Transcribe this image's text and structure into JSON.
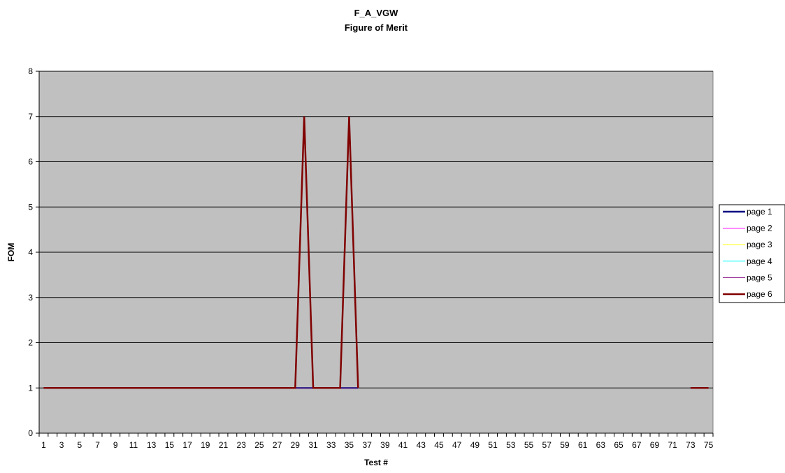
{
  "chart_data": {
    "type": "line",
    "title": "F_A_VGW",
    "subtitle": "Figure of Merit",
    "xlabel": "Test #",
    "ylabel": "FOM",
    "ylim": [
      0,
      8
    ],
    "yticks": [
      0,
      1,
      2,
      3,
      4,
      5,
      6,
      7,
      8
    ],
    "x": [
      1,
      2,
      3,
      4,
      5,
      6,
      7,
      8,
      9,
      10,
      11,
      12,
      13,
      14,
      15,
      16,
      17,
      18,
      19,
      20,
      21,
      22,
      23,
      24,
      25,
      26,
      27,
      28,
      29,
      30,
      31,
      32,
      33,
      34,
      35,
      36,
      37,
      38,
      39,
      40,
      41,
      42,
      43,
      44,
      45,
      46,
      47,
      48,
      49,
      50,
      51,
      52,
      53,
      54,
      55,
      56,
      57,
      58,
      59,
      60,
      61,
      62,
      63,
      64,
      65,
      66,
      67,
      68,
      69,
      70,
      71,
      72,
      73,
      74,
      75
    ],
    "xtick_labels": [
      "1",
      "3",
      "5",
      "7",
      "9",
      "11",
      "13",
      "15",
      "17",
      "19",
      "21",
      "23",
      "25",
      "27",
      "29",
      "31",
      "33",
      "35",
      "37",
      "39",
      "41",
      "43",
      "45",
      "47",
      "49",
      "51",
      "53",
      "55",
      "57",
      "59",
      "61",
      "63",
      "65",
      "67",
      "69",
      "71",
      "73",
      "75"
    ],
    "grid": "horizontal",
    "plot_background": "#c0c0c0",
    "legend_position": "right",
    "series": [
      {
        "name": "page 1",
        "color": "#000080",
        "width": 2.5,
        "values": [
          1,
          1,
          1,
          1,
          1,
          1,
          1,
          1,
          1,
          1,
          1,
          1,
          1,
          1,
          1,
          1,
          1,
          1,
          1,
          1,
          1,
          1,
          1,
          1,
          1,
          1,
          1,
          1,
          1,
          1,
          1,
          1,
          1,
          1,
          1,
          1,
          null,
          null,
          null,
          null,
          null,
          null,
          null,
          null,
          null,
          null,
          null,
          null,
          null,
          null,
          null,
          null,
          null,
          null,
          null,
          null,
          null,
          null,
          null,
          null,
          null,
          null,
          null,
          null,
          null,
          null,
          null,
          null,
          null,
          null,
          null,
          null,
          1,
          1,
          1
        ]
      },
      {
        "name": "page 2",
        "color": "#ff00ff",
        "width": 1,
        "values": [
          1,
          1,
          1,
          1,
          1,
          1,
          1,
          1,
          1,
          1,
          1,
          1,
          1,
          1,
          1,
          1,
          1,
          1,
          1,
          1,
          1,
          1,
          1,
          1,
          1,
          1,
          1,
          1,
          1,
          1,
          1,
          1,
          1,
          1,
          1,
          1,
          null,
          null,
          null,
          null,
          null,
          null,
          null,
          null,
          null,
          null,
          null,
          null,
          null,
          null,
          null,
          null,
          null,
          null,
          null,
          null,
          null,
          null,
          null,
          null,
          null,
          null,
          null,
          null,
          null,
          null,
          null,
          null,
          null,
          null,
          null,
          null,
          1,
          1,
          1
        ]
      },
      {
        "name": "page 3",
        "color": "#ffff00",
        "width": 1,
        "values": [
          1,
          1,
          1,
          1,
          1,
          1,
          1,
          1,
          1,
          1,
          1,
          1,
          1,
          1,
          1,
          1,
          1,
          1,
          1,
          1,
          1,
          1,
          1,
          1,
          1,
          1,
          1,
          1,
          1,
          1,
          1,
          1,
          1,
          1,
          1,
          1,
          null,
          null,
          null,
          null,
          null,
          null,
          null,
          null,
          null,
          null,
          null,
          null,
          null,
          null,
          null,
          null,
          null,
          null,
          null,
          null,
          null,
          null,
          null,
          null,
          null,
          null,
          null,
          null,
          null,
          null,
          null,
          null,
          null,
          null,
          null,
          null,
          1,
          1,
          1
        ]
      },
      {
        "name": "page 4",
        "color": "#00ffff",
        "width": 1,
        "values": [
          1,
          1,
          1,
          1,
          1,
          1,
          1,
          1,
          1,
          1,
          1,
          1,
          1,
          1,
          1,
          1,
          1,
          1,
          1,
          1,
          1,
          1,
          1,
          1,
          1,
          1,
          1,
          1,
          1,
          1,
          1,
          1,
          1,
          1,
          1,
          1,
          null,
          null,
          null,
          null,
          null,
          null,
          null,
          null,
          null,
          null,
          null,
          null,
          null,
          null,
          null,
          null,
          null,
          null,
          null,
          null,
          null,
          null,
          null,
          null,
          null,
          null,
          null,
          null,
          null,
          null,
          null,
          null,
          null,
          null,
          null,
          null,
          1,
          1,
          1
        ]
      },
      {
        "name": "page 5",
        "color": "#800080",
        "width": 1,
        "values": [
          1,
          1,
          1,
          1,
          1,
          1,
          1,
          1,
          1,
          1,
          1,
          1,
          1,
          1,
          1,
          1,
          1,
          1,
          1,
          1,
          1,
          1,
          1,
          1,
          1,
          1,
          1,
          1,
          1,
          1,
          1,
          1,
          1,
          1,
          1,
          1,
          null,
          null,
          null,
          null,
          null,
          null,
          null,
          null,
          null,
          null,
          null,
          null,
          null,
          null,
          null,
          null,
          null,
          null,
          null,
          null,
          null,
          null,
          null,
          null,
          null,
          null,
          null,
          null,
          null,
          null,
          null,
          null,
          null,
          null,
          null,
          null,
          1,
          1,
          1
        ]
      },
      {
        "name": "page 6",
        "color": "#800000",
        "width": 2.5,
        "values": [
          1,
          1,
          1,
          1,
          1,
          1,
          1,
          1,
          1,
          1,
          1,
          1,
          1,
          1,
          1,
          1,
          1,
          1,
          1,
          1,
          1,
          1,
          1,
          1,
          1,
          1,
          1,
          1,
          1,
          7,
          1,
          1,
          1,
          1,
          7,
          1,
          null,
          null,
          null,
          null,
          null,
          null,
          null,
          null,
          null,
          null,
          null,
          null,
          null,
          null,
          null,
          null,
          null,
          null,
          null,
          null,
          null,
          null,
          null,
          null,
          null,
          null,
          null,
          null,
          null,
          null,
          null,
          null,
          null,
          null,
          null,
          null,
          1,
          1,
          1
        ]
      }
    ]
  }
}
